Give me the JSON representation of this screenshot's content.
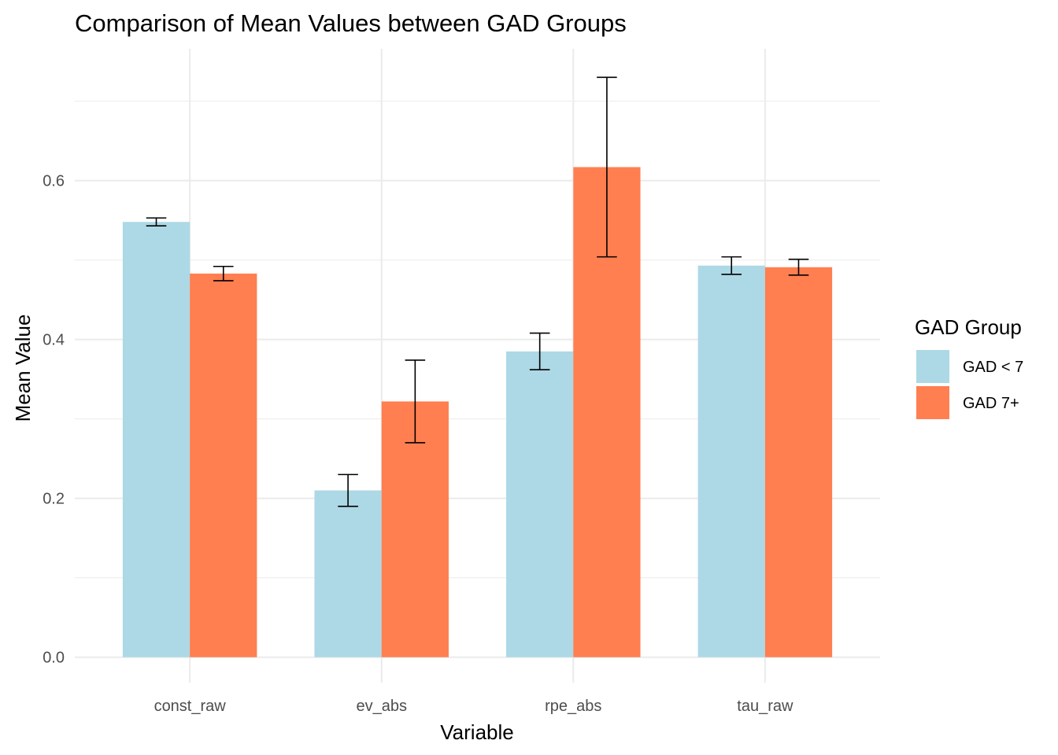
{
  "chart_data": {
    "type": "bar",
    "title": "Comparison of Mean Values between GAD Groups",
    "xlabel": "Variable",
    "ylabel": "Mean Value",
    "categories": [
      "const_raw",
      "ev_abs",
      "rpe_abs",
      "tau_raw"
    ],
    "series": [
      {
        "name": "GAD < 7",
        "color": "#ADD8E6",
        "values": [
          0.548,
          0.21,
          0.385,
          0.493
        ],
        "error": [
          0.005,
          0.02,
          0.023,
          0.011
        ]
      },
      {
        "name": "GAD 7+",
        "color": "#FF7F50",
        "values": [
          0.483,
          0.322,
          0.617,
          0.491
        ],
        "error": [
          0.009,
          0.052,
          0.113,
          0.01
        ]
      }
    ],
    "ylim": [
      -0.032,
      0.766
    ],
    "yticks": [
      "0.0",
      "0.2",
      "0.4",
      "0.6"
    ],
    "ytick_values": [
      0,
      0.2,
      0.4,
      0.6
    ],
    "grid": true,
    "legend": {
      "title": "GAD Group",
      "position": "right"
    }
  }
}
